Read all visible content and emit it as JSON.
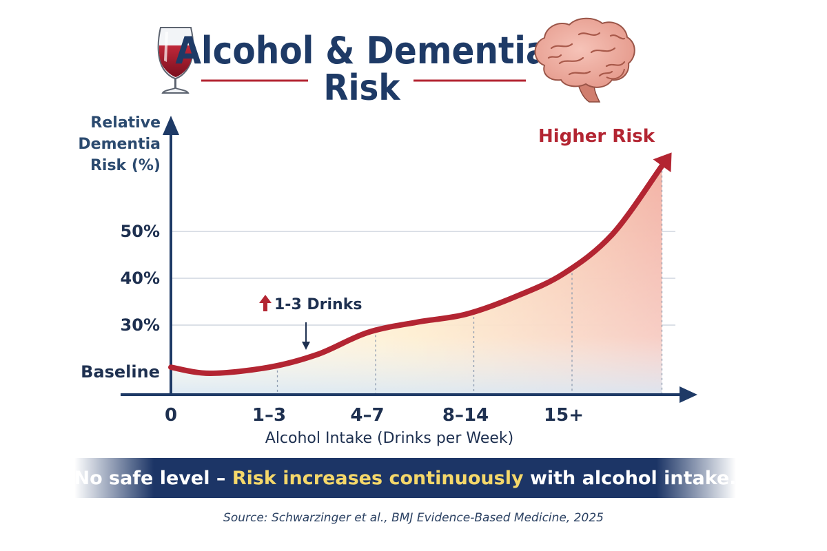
{
  "header": {
    "title_line1": "Alcohol & Dementia",
    "title_line2": "Risk"
  },
  "chart_data": {
    "type": "line",
    "ylabel_lines": [
      "Relative",
      "Dementia",
      "Risk (%)"
    ],
    "xlabel": "Alcohol Intake (Drinks per Week)",
    "x_ticks": [
      "0",
      "1–3",
      "4–7",
      "8–14",
      "15+"
    ],
    "y_ticks": [
      {
        "label": "Baseline",
        "value": 20
      },
      {
        "label": "30%",
        "value": 30
      },
      {
        "label": "40%",
        "value": 40
      },
      {
        "label": "50%",
        "value": 50
      }
    ],
    "ylim": [
      15,
      68
    ],
    "series": [
      {
        "color": "#b32532",
        "x": [
          0,
          0.4,
          1.0,
          1.5,
          2.0,
          2.5,
          3.0,
          3.5,
          4.0,
          4.5,
          5.0
        ],
        "y": [
          21,
          19.7,
          21,
          23.8,
          28.4,
          30.6,
          32.3,
          36.0,
          41.0,
          49.5,
          64.0
        ]
      }
    ],
    "annotations": {
      "higher_risk": "Higher Risk",
      "callout": "1-3 Drinks"
    }
  },
  "footer": {
    "banner_part1": "No safe level – ",
    "banner_highlight": "Risk increases continuously",
    "banner_part2": " with alcohol intake.",
    "source": "Source: Schwarzinger et al., BMJ Evidence-Based Medicine, 2025"
  },
  "colors": {
    "navy": "#1e3a66",
    "risk_red": "#b32532",
    "highlight_yellow": "#f5d86a"
  },
  "icons": [
    "wine-glass-icon",
    "brain-icon",
    "up-arrow-icon"
  ]
}
